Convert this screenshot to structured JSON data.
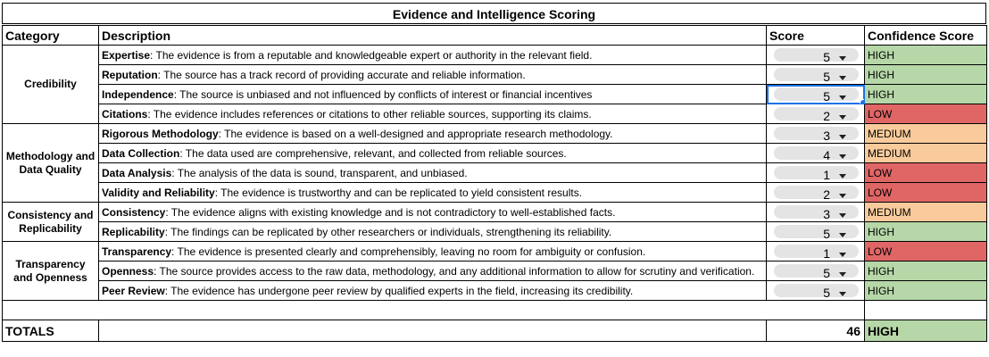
{
  "title": "Evidence and Intelligence Scoring",
  "headers": {
    "category": "Category",
    "description": "Description",
    "score": "Score",
    "confidence": "Confidence Score"
  },
  "groups": [
    {
      "category": "Credibility",
      "rows": [
        {
          "term": "Expertise",
          "text": ": The evidence is from a reputable and knowledgeable expert or authority in the relevant field.",
          "score": "5",
          "confidence": "HIGH",
          "level": "hi"
        },
        {
          "term": "Reputation",
          "text": ": The source has a track record of providing accurate and reliable information.",
          "score": "5",
          "confidence": "HIGH",
          "level": "hi"
        },
        {
          "term": "Independence",
          "text": ": The source is unbiased and not influenced by conflicts of interest or financial incentives",
          "score": "5",
          "confidence": "HIGH",
          "level": "hi"
        },
        {
          "term": "Citations",
          "text": ": The evidence includes references or citations to other reliable sources, supporting its claims.",
          "score": "2",
          "confidence": "LOW",
          "level": "low"
        }
      ]
    },
    {
      "category": "Methodology and Data Quality",
      "rows": [
        {
          "term": "Rigorous Methodology",
          "text": ": The evidence is based on a well-designed and appropriate research methodology.",
          "score": "3",
          "confidence": "MEDIUM",
          "level": "med"
        },
        {
          "term": "Data Collection",
          "text": ": The data used are comprehensive, relevant, and collected from reliable sources.",
          "score": "4",
          "confidence": "MEDIUM",
          "level": "med"
        },
        {
          "term": "Data Analysis",
          "text": ": The analysis of the data is sound, transparent, and unbiased.",
          "score": "1",
          "confidence": "LOW",
          "level": "low"
        },
        {
          "term": "Validity and Reliability",
          "text": ": The evidence is trustworthy and can be replicated to yield consistent results.",
          "score": "2",
          "confidence": "LOW",
          "level": "low"
        }
      ]
    },
    {
      "category": "Consistency and Replicability",
      "rows": [
        {
          "term": "Consistency",
          "text": ": The evidence aligns with existing knowledge and is not contradictory to well-established facts.",
          "score": "3",
          "confidence": "MEDIUM",
          "level": "med"
        },
        {
          "term": "Replicability",
          "text": ": The findings can be replicated by other researchers or individuals, strengthening its reliability.",
          "score": "5",
          "confidence": "HIGH",
          "level": "hi"
        }
      ]
    },
    {
      "category": "Transparency and Openness",
      "rows": [
        {
          "term": "Transparency",
          "text": ": The evidence is presented clearly and comprehensibly, leaving no room for ambiguity or confusion.",
          "score": "1",
          "confidence": "LOW",
          "level": "low"
        },
        {
          "term": "Openness",
          "text": ": The source provides access to the raw data, methodology, and any additional information to allow for scrutiny and verification.",
          "score": "5",
          "confidence": "HIGH",
          "level": "hi"
        },
        {
          "term": "Peer Review",
          "text": ": The evidence has undergone peer review by qualified experts in the field, increasing its credibility.",
          "score": "5",
          "confidence": "HIGH",
          "level": "hi"
        }
      ]
    }
  ],
  "totals": {
    "label": "TOTALS",
    "score": "46",
    "confidence": "HIGH",
    "level": "hi"
  },
  "selected_row": 2,
  "colors": {
    "high": "#b6d7a8",
    "medium": "#f9cb9c",
    "low": "#e06666",
    "selection": "#1a73e8"
  }
}
